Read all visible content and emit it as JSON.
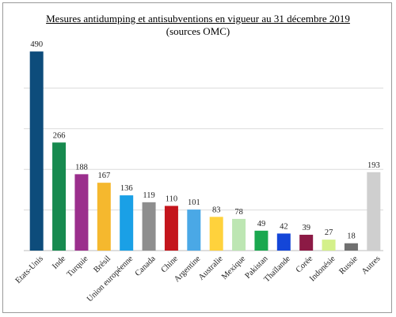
{
  "chart_data": {
    "type": "bar",
    "title": "Mesures antidumping et antisubventions en vigueur au 31 décembre 2019",
    "subtitle": "(sources OMC)",
    "xlabel": "",
    "ylabel": "",
    "ylim": [
      0,
      500
    ],
    "grid": true,
    "legend": "none",
    "categories": [
      "Etats-Unis",
      "Inde",
      "Turquie",
      "Brésil",
      "Union européenne",
      "Canada",
      "Chine",
      "Argentine",
      "Australie",
      "Mexique",
      "Pakistan",
      "Thaïlande",
      "Corée",
      "Indonésie",
      "Russie",
      "Autres"
    ],
    "values": [
      490,
      266,
      188,
      167,
      136,
      119,
      110,
      101,
      83,
      78,
      49,
      42,
      39,
      27,
      18,
      193
    ],
    "colors": [
      "#0d4c7b",
      "#178a4f",
      "#9b2f8d",
      "#f5b82e",
      "#1aa0e6",
      "#8e8e8e",
      "#c4151c",
      "#4aa8e6",
      "#ffd23c",
      "#bde6b3",
      "#1aa84f",
      "#1446d8",
      "#8c1a45",
      "#d4f08a",
      "#707070",
      "#cfcfcf"
    ]
  }
}
